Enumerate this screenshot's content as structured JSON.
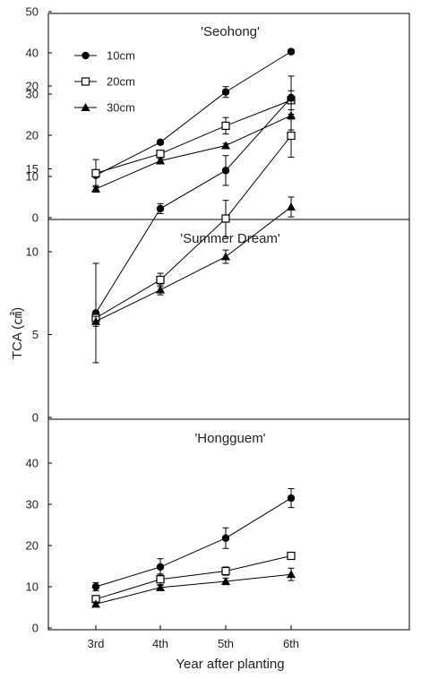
{
  "chart_data": {
    "type": "line",
    "categories": [
      "3rd",
      "4th",
      "5th",
      "6th"
    ],
    "xlabel": "Year after planting",
    "ylabel": "TCA (㎠)",
    "legend": {
      "placement": "top-left",
      "entries": [
        {
          "name": "10cm",
          "marker": "filled-circle"
        },
        {
          "name": "20cm",
          "marker": "open-square"
        },
        {
          "name": "30cm",
          "marker": "filled-triangle"
        }
      ]
    },
    "panels": [
      {
        "title": "'Seohong'",
        "ylim": [
          0,
          50
        ],
        "yticks": [
          0,
          10,
          20,
          30,
          40,
          50
        ],
        "series": [
          {
            "name": "10cm",
            "values": [
              10.3,
              18.3,
              30.5,
              40.3
            ],
            "errors": [
              0.5,
              0.5,
              1.3,
              0.5
            ]
          },
          {
            "name": "20cm",
            "values": [
              10.8,
              15.5,
              22.3,
              28.5
            ],
            "errors": [
              3.3,
              0.8,
              2.0,
              2.3
            ]
          },
          {
            "name": "30cm",
            "values": [
              7.0,
              13.8,
              17.5,
              24.8
            ],
            "errors": [
              0.8,
              0.5,
              0.5,
              3.5
            ]
          }
        ]
      },
      {
        "title": "'Summer Dream'",
        "ylim": [
          0,
          25
        ],
        "yticks": [
          0,
          5,
          10,
          15,
          20
        ],
        "series": [
          {
            "name": "10cm",
            "values": [
              6.3,
              12.6,
              14.9,
              19.3
            ],
            "errors": [
              3.0,
              0.3,
              0.9,
              1.3
            ]
          },
          {
            "name": "20cm",
            "values": [
              6.0,
              8.3,
              12.0,
              17.0
            ],
            "errors": [
              0.3,
              0.4,
              1.1,
              1.3
            ]
          },
          {
            "name": "30cm",
            "values": [
              5.8,
              7.7,
              9.7,
              12.7
            ],
            "errors": [
              0.3,
              0.3,
              0.4,
              0.6
            ]
          }
        ]
      },
      {
        "title": "'Hongguem'",
        "ylim": [
          0,
          50
        ],
        "yticks": [
          0,
          10,
          20,
          30,
          40
        ],
        "series": [
          {
            "name": "10cm",
            "values": [
              10.0,
              14.8,
              21.8,
              31.5
            ],
            "errors": [
              1.0,
              2.0,
              2.5,
              2.3
            ]
          },
          {
            "name": "20cm",
            "values": [
              7.0,
              11.8,
              13.8,
              17.5
            ],
            "errors": [
              0.8,
              1.3,
              1.0,
              0.8
            ]
          },
          {
            "name": "30cm",
            "values": [
              5.8,
              9.8,
              11.3,
              13.0
            ],
            "errors": [
              0.5,
              0.5,
              0.8,
              1.5
            ]
          }
        ]
      }
    ]
  }
}
